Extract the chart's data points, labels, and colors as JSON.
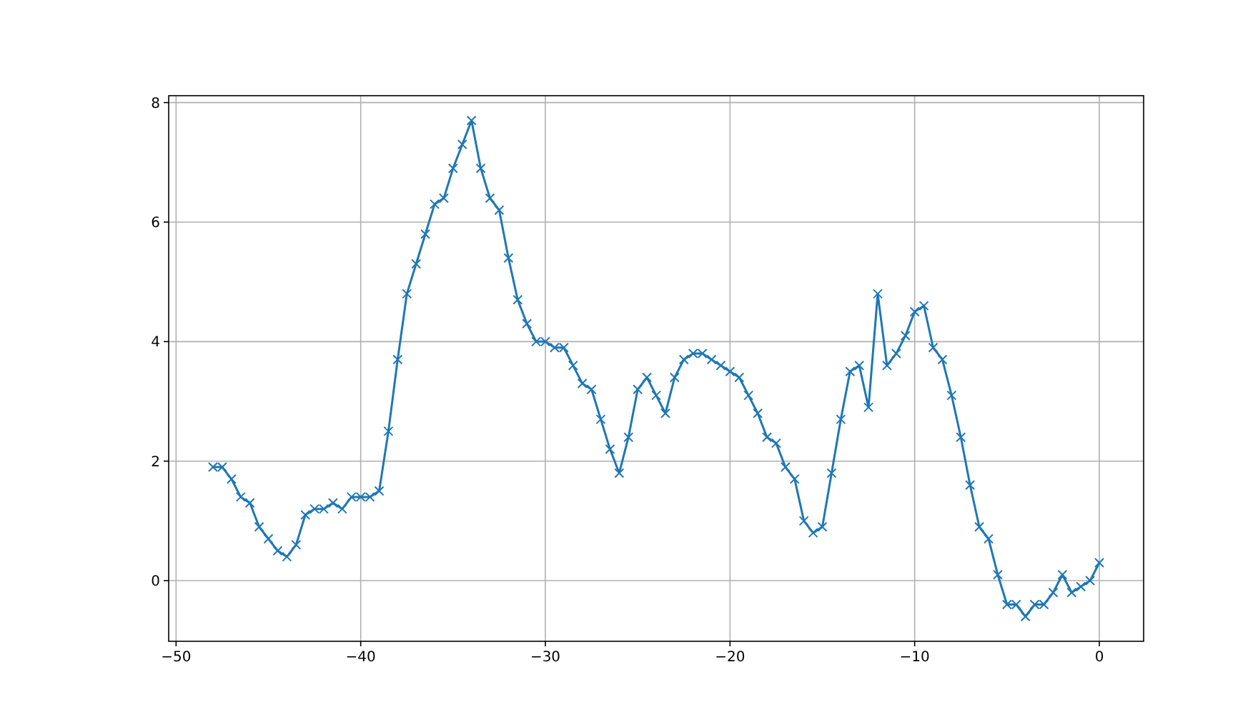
{
  "chart_data": {
    "type": "line",
    "marker": "cross",
    "grid": true,
    "xlim": [
      -50.4,
      2.4
    ],
    "xticks": [
      -50,
      -40,
      -30,
      -20,
      -10,
      0
    ],
    "ylim": [
      -1.015,
      8.115
    ],
    "yticks": [
      0,
      2,
      4,
      6,
      8
    ],
    "x": [
      -48,
      -47.5,
      -47,
      -46.5,
      -46,
      -45.5,
      -45,
      -44.5,
      -44,
      -43.5,
      -43,
      -42.5,
      -42,
      -41.5,
      -41,
      -40.5,
      -40,
      -39.5,
      -39,
      -38.5,
      -38,
      -37.5,
      -37,
      -36.5,
      -36,
      -35.5,
      -35,
      -34.5,
      -34,
      -33.5,
      -33,
      -32.5,
      -32,
      -31.5,
      -31,
      -30.5,
      -30,
      -29.5,
      -29,
      -28.5,
      -28,
      -27.5,
      -27,
      -26.5,
      -26,
      -25.5,
      -25,
      -24.5,
      -24,
      -23.5,
      -23,
      -22.5,
      -22,
      -21.5,
      -21,
      -20.5,
      -20,
      -19.5,
      -19,
      -18.5,
      -18,
      -17.5,
      -17,
      -16.5,
      -16,
      -15.5,
      -15,
      -14.5,
      -14,
      -13.5,
      -13,
      -12.5,
      -12,
      -11.5,
      -11,
      -10.5,
      -10,
      -9.5,
      -9,
      -8.5,
      -8,
      -7.5,
      -7,
      -6.5,
      -6,
      -5.5,
      -5,
      -4.5,
      -4,
      -3.5,
      -3,
      -2.5,
      -2,
      -1.5,
      -1,
      -0.5,
      0
    ],
    "series": [
      {
        "color": "#1f77b4",
        "values": [
          1.9,
          1.9,
          1.7,
          1.4,
          1.3,
          0.9,
          0.7,
          0.5,
          0.4,
          0.6,
          1.1,
          1.2,
          1.2,
          1.3,
          1.2,
          1.4,
          1.4,
          1.4,
          1.5,
          2.5,
          3.7,
          4.8,
          5.3,
          5.8,
          6.3,
          6.4,
          6.9,
          7.3,
          7.7,
          6.9,
          6.4,
          6.2,
          5.4,
          4.7,
          4.3,
          4.0,
          4.0,
          3.9,
          3.9,
          3.6,
          3.3,
          3.2,
          2.7,
          2.2,
          1.8,
          2.4,
          3.2,
          3.4,
          3.1,
          2.8,
          3.4,
          3.7,
          3.8,
          3.8,
          3.7,
          3.6,
          3.5,
          3.4,
          3.1,
          2.8,
          2.4,
          2.3,
          1.9,
          1.7,
          1.0,
          0.8,
          0.9,
          1.8,
          2.7,
          3.5,
          3.6,
          2.9,
          4.8,
          3.6,
          3.8,
          4.1,
          4.5,
          4.6,
          3.9,
          3.7,
          3.1,
          2.4,
          1.6,
          0.9,
          0.7,
          0.1,
          -0.4,
          -0.4,
          -0.6,
          -0.4,
          -0.4,
          -0.2,
          0.1,
          -0.2,
          -0.1,
          0.0,
          0.3
        ]
      }
    ]
  }
}
